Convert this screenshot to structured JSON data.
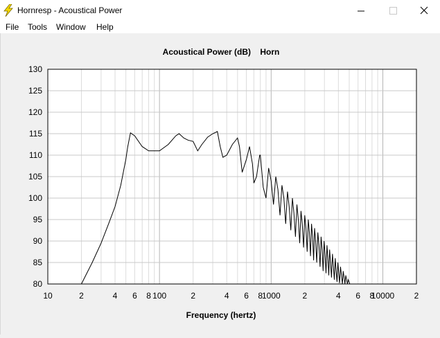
{
  "window": {
    "title": "Hornresp - Acoustical Power",
    "icon": "lightning-bolt-icon",
    "controls": {
      "minimize": "minimize-icon",
      "maximize": "maximize-icon",
      "close": "close-icon"
    }
  },
  "menu": [
    {
      "label": "File"
    },
    {
      "label": "Tools"
    },
    {
      "label": "Window"
    },
    {
      "label": "Help"
    }
  ],
  "chart_data": {
    "type": "line",
    "title": "Acoustical Power (dB)    Horn",
    "xlabel": "Frequency (hertz)",
    "ylabel": "",
    "xscale": "log",
    "xlim": [
      10,
      20000
    ],
    "ylim": [
      80,
      130
    ],
    "grid": true,
    "yticks": [
      "130",
      "125",
      "120",
      "115",
      "110",
      "105",
      "100",
      "95",
      "90",
      "85",
      "80"
    ],
    "xtick_labels": [
      {
        "f": 10,
        "label": "10"
      },
      {
        "f": 20,
        "label": "2"
      },
      {
        "f": 40,
        "label": "4"
      },
      {
        "f": 60,
        "label": "6"
      },
      {
        "f": 80,
        "label": "8"
      },
      {
        "f": 100,
        "label": "100"
      },
      {
        "f": 200,
        "label": "2"
      },
      {
        "f": 400,
        "label": "4"
      },
      {
        "f": 600,
        "label": "6"
      },
      {
        "f": 800,
        "label": "8"
      },
      {
        "f": 1000,
        "label": "1000"
      },
      {
        "f": 2000,
        "label": "2"
      },
      {
        "f": 4000,
        "label": "4"
      },
      {
        "f": 6000,
        "label": "6"
      },
      {
        "f": 8000,
        "label": "8"
      },
      {
        "f": 10000,
        "label": "10000"
      },
      {
        "f": 20000,
        "label": "2"
      }
    ],
    "series": [
      {
        "color": "#000000",
        "x": [
          20,
          25,
          30,
          35,
          40,
          45,
          50,
          52,
          55,
          60,
          70,
          80,
          100,
          120,
          140,
          150,
          165,
          180,
          200,
          220,
          240,
          270,
          300,
          330,
          350,
          370,
          400,
          450,
          500,
          520,
          550,
          600,
          640,
          680,
          700,
          740,
          790,
          800,
          850,
          900,
          950,
          1000,
          1050,
          1100,
          1150,
          1200,
          1250,
          1300,
          1350,
          1400,
          1450,
          1500,
          1550,
          1600,
          1650,
          1700,
          1750,
          1800,
          1850,
          1900,
          1950,
          2000,
          2050,
          2100,
          2150,
          2200,
          2250,
          2300,
          2350,
          2400,
          2450,
          2500,
          2560,
          2620,
          2680,
          2740,
          2800,
          2860,
          2920,
          2980,
          3040,
          3100,
          3160,
          3220,
          3280,
          3340,
          3400,
          3470,
          3540,
          3610,
          3680,
          3750,
          3820,
          3890,
          3960,
          4030,
          4100,
          4180,
          4260,
          4340,
          4420,
          4500,
          4580,
          4660,
          4740,
          4820,
          4900,
          4980,
          5060,
          5140
        ],
        "y": [
          80.0,
          85.0,
          89.5,
          94.0,
          98.0,
          103.0,
          109.0,
          112.0,
          115.2,
          114.5,
          112.0,
          111.0,
          111.0,
          112.5,
          114.5,
          115.0,
          114.0,
          113.5,
          113.2,
          111.0,
          112.5,
          114.2,
          115.0,
          115.5,
          112.0,
          109.5,
          110.0,
          112.5,
          114.0,
          112.0,
          106.0,
          109.0,
          112.0,
          108.0,
          103.5,
          105.0,
          110.0,
          110.0,
          102.5,
          100.0,
          107.0,
          104.0,
          98.5,
          105.0,
          102.0,
          96.0,
          103.0,
          100.0,
          94.0,
          101.5,
          98.0,
          92.5,
          100.0,
          96.5,
          91.0,
          98.5,
          95.0,
          89.5,
          97.0,
          94.0,
          88.5,
          96.0,
          93.0,
          87.5,
          95.0,
          92.0,
          86.5,
          94.0,
          91.0,
          85.5,
          93.0,
          90.0,
          85.0,
          92.0,
          89.0,
          84.0,
          91.0,
          88.0,
          83.0,
          90.0,
          87.0,
          82.5,
          89.0,
          86.0,
          82.0,
          88.0,
          85.0,
          81.5,
          87.0,
          84.0,
          81.0,
          86.0,
          83.0,
          80.5,
          85.0,
          82.5,
          80.2,
          84.0,
          82.0,
          80.0,
          83.0,
          81.5,
          80.0,
          82.0,
          81.0,
          80.0,
          81.0,
          80.5,
          80.0,
          80.0
        ]
      }
    ]
  }
}
